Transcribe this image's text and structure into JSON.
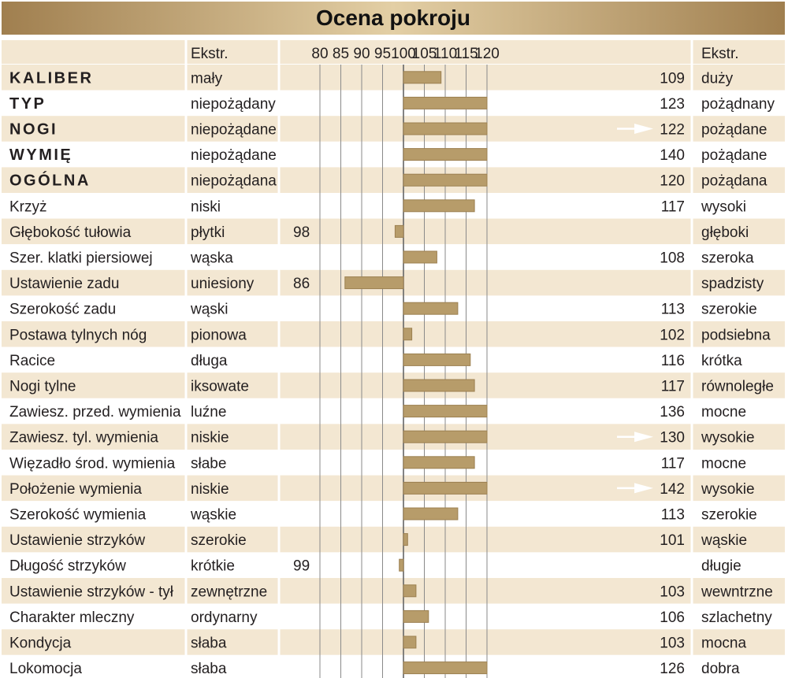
{
  "chart_data": {
    "type": "bar",
    "title": "Ocena pokroju",
    "header": {
      "left_extreme": "Ekstr.",
      "right_extreme": "Ekstr."
    },
    "x_ticks": [
      80,
      85,
      90,
      95,
      100,
      105,
      110,
      115,
      120
    ],
    "xlim": [
      75,
      120
    ],
    "baseline": 100,
    "rows": [
      {
        "trait": "KALIBER",
        "bold": true,
        "low": "mały",
        "high": "duży",
        "value": 109,
        "label": "109",
        "label_side": "right",
        "arrow": false
      },
      {
        "trait": "TYP",
        "bold": true,
        "low": "niepożądany",
        "high": "pożądnany",
        "value": 123,
        "label": "123",
        "label_side": "right",
        "arrow": true
      },
      {
        "trait": "NOGI",
        "bold": true,
        "low": "niepożądane",
        "high": "pożądane",
        "value": 122,
        "label": "122",
        "label_side": "right",
        "arrow": true
      },
      {
        "trait": "WYMIĘ",
        "bold": true,
        "low": "niepożądane",
        "high": "pożądane",
        "value": 140,
        "label": "140",
        "label_side": "right",
        "arrow": true
      },
      {
        "trait": "OGÓLNA",
        "bold": true,
        "low": "niepożądana",
        "high": "pożądana",
        "value": 120,
        "label": "120",
        "label_side": "right",
        "arrow": false
      },
      {
        "trait": "Krzyż",
        "bold": false,
        "low": "niski",
        "high": "wysoki",
        "value": 117,
        "label": "117",
        "label_side": "right",
        "arrow": false
      },
      {
        "trait": "Głębokość tułowia",
        "bold": false,
        "low": "płytki",
        "high": "głęboki",
        "value": 98,
        "label": "98",
        "label_side": "left",
        "arrow": false
      },
      {
        "trait": "Szer. klatki piersiowej",
        "bold": false,
        "low": "wąska",
        "high": "szeroka",
        "value": 108,
        "label": "108",
        "label_side": "right",
        "arrow": false
      },
      {
        "trait": "Ustawienie zadu",
        "bold": false,
        "low": "uniesiony",
        "high": "spadzisty",
        "value": 86,
        "label": "86",
        "label_side": "left",
        "arrow": false
      },
      {
        "trait": "Szerokość zadu",
        "bold": false,
        "low": "wąski",
        "high": "szerokie",
        "value": 113,
        "label": "113",
        "label_side": "right",
        "arrow": false
      },
      {
        "trait": "Postawa tylnych nóg",
        "bold": false,
        "low": "pionowa",
        "high": "podsiebna",
        "value": 102,
        "label": "102",
        "label_side": "right",
        "arrow": false
      },
      {
        "trait": "Racice",
        "bold": false,
        "low": "długa",
        "high": "krótka",
        "value": 116,
        "label": "116",
        "label_side": "right",
        "arrow": false
      },
      {
        "trait": "Nogi tylne",
        "bold": false,
        "low": "iksowate",
        "high": "równoległe",
        "value": 117,
        "label": "117",
        "label_side": "right",
        "arrow": false
      },
      {
        "trait": "Zawiesz. przed. wymienia",
        "bold": false,
        "low": "luźne",
        "high": "mocne",
        "value": 136,
        "label": "136",
        "label_side": "right",
        "arrow": true
      },
      {
        "trait": "Zawiesz. tyl. wymienia",
        "bold": false,
        "low": "niskie",
        "high": "wysokie",
        "value": 130,
        "label": "130",
        "label_side": "right",
        "arrow": true
      },
      {
        "trait": "Więzadło środ. wymienia",
        "bold": false,
        "low": "słabe",
        "high": "mocne",
        "value": 117,
        "label": "117",
        "label_side": "right",
        "arrow": false
      },
      {
        "trait": "Położenie wymienia",
        "bold": false,
        "low": "niskie",
        "high": "wysokie",
        "value": 142,
        "label": "142",
        "label_side": "right",
        "arrow": true
      },
      {
        "trait": "Szerokość wymienia",
        "bold": false,
        "low": "wąskie",
        "high": "szerokie",
        "value": 113,
        "label": "113",
        "label_side": "right",
        "arrow": false
      },
      {
        "trait": "Ustawienie strzyków",
        "bold": false,
        "low": "szerokie",
        "high": "wąskie",
        "value": 101,
        "label": "101",
        "label_side": "right",
        "arrow": false
      },
      {
        "trait": "Długość strzyków",
        "bold": false,
        "low": "krótkie",
        "high": "długie",
        "value": 99,
        "label": "99",
        "label_side": "left",
        "arrow": false
      },
      {
        "trait": "Ustawienie strzyków - tył",
        "bold": false,
        "low": "zewnętrzne",
        "high": "wewntrzne",
        "value": 103,
        "label": "103",
        "label_side": "right",
        "arrow": false
      },
      {
        "trait": "Charakter mleczny",
        "bold": false,
        "low": "ordynarny",
        "high": "szlachetny",
        "value": 106,
        "label": "106",
        "label_side": "right",
        "arrow": false
      },
      {
        "trait": "Kondycja",
        "bold": false,
        "low": "słaba",
        "high": "mocna",
        "value": 103,
        "label": "103",
        "label_side": "right",
        "arrow": false
      },
      {
        "trait": "Lokomocja",
        "bold": false,
        "low": "słaba",
        "high": "dobra",
        "value": 126,
        "label": "126",
        "label_side": "right",
        "arrow": true
      }
    ],
    "colors": {
      "bar": "#b79c6a",
      "bar_edge": "#9c8050",
      "row_odd": "#f3e7d2",
      "row_even": "#ffffff",
      "header_row": "#f3e7d2",
      "title_band": "#c8ae80",
      "gridline": "#8a8a8a",
      "arrow": "#ffffff"
    }
  }
}
